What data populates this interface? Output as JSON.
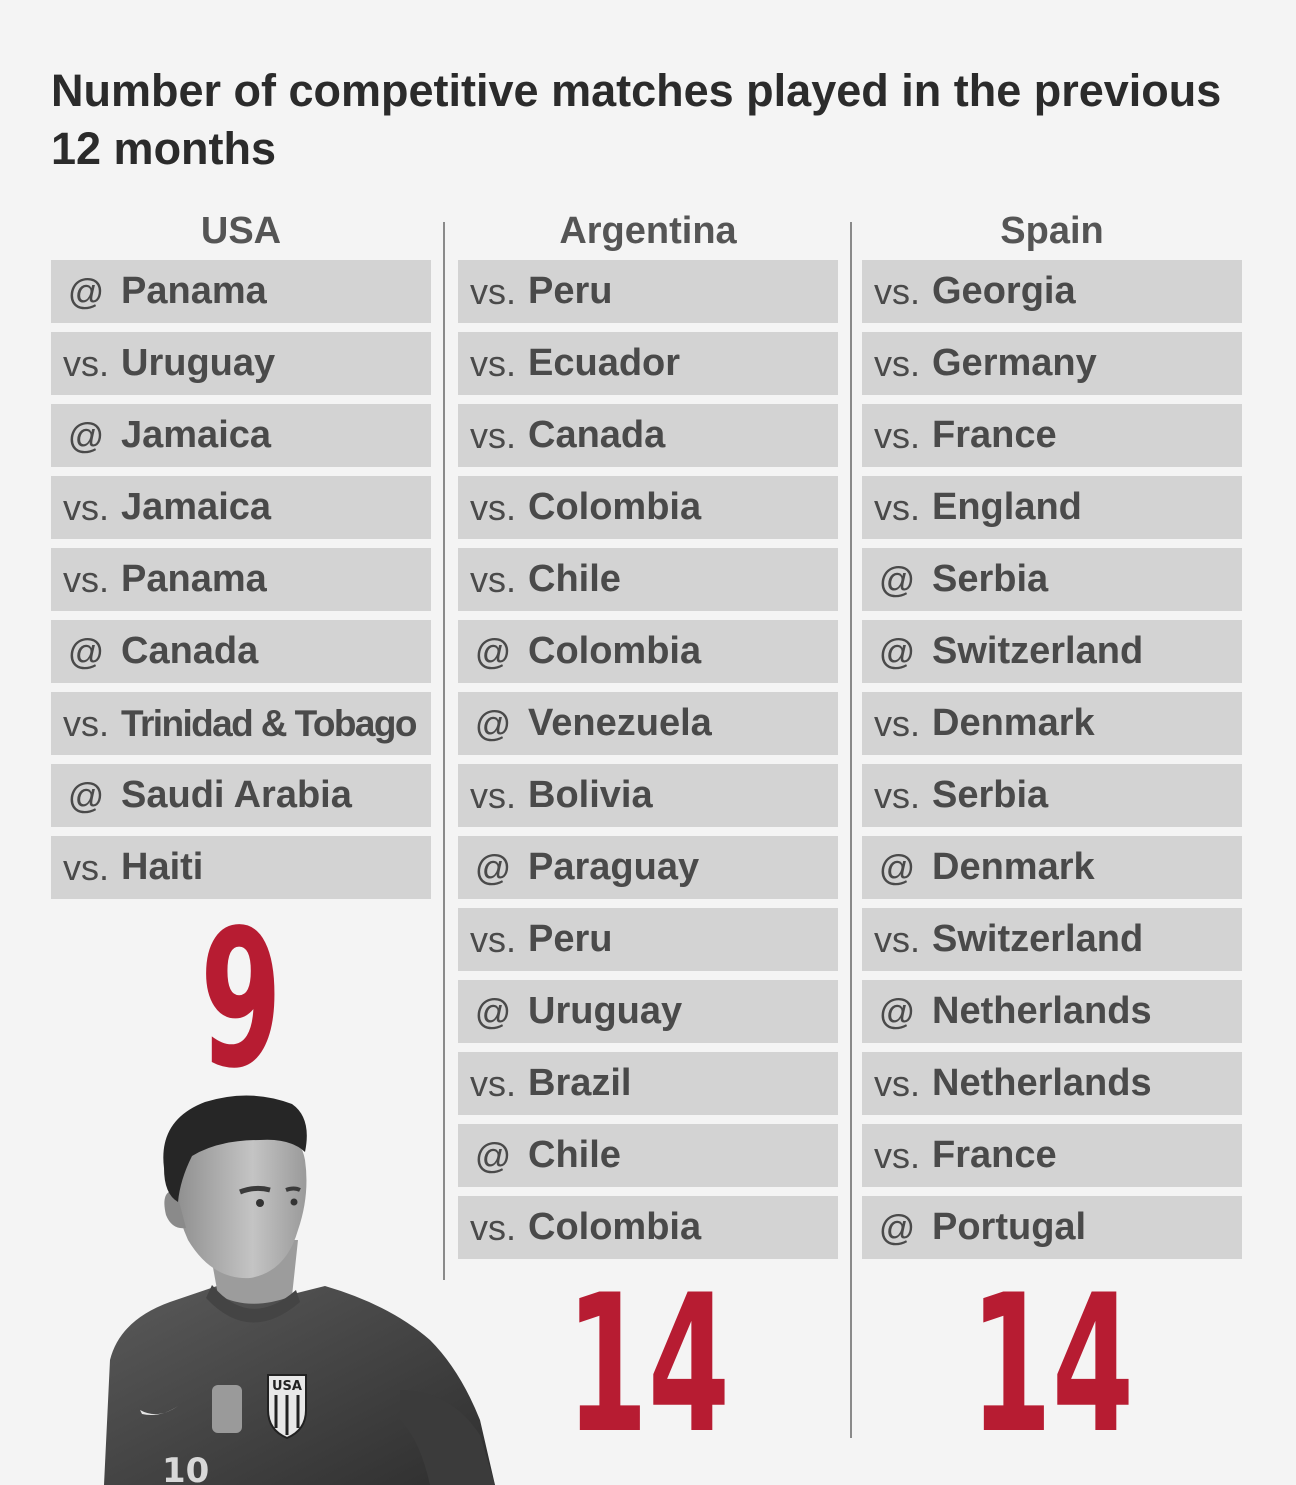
{
  "title": "Number of competitive matches played in the previous 12 months",
  "teams": [
    {
      "name": "USA",
      "total": "9",
      "matches": [
        {
          "prefix": "@",
          "opponent": "Panama"
        },
        {
          "prefix": "vs.",
          "opponent": "Uruguay"
        },
        {
          "prefix": "@",
          "opponent": "Jamaica"
        },
        {
          "prefix": "vs.",
          "opponent": "Jamaica"
        },
        {
          "prefix": "vs.",
          "opponent": "Panama"
        },
        {
          "prefix": "@",
          "opponent": "Canada"
        },
        {
          "prefix": "vs.",
          "opponent": "Trinidad & Tobago"
        },
        {
          "prefix": "@",
          "opponent": "Saudi Arabia"
        },
        {
          "prefix": "vs.",
          "opponent": "Haiti"
        }
      ]
    },
    {
      "name": "Argentina",
      "total": "14",
      "matches": [
        {
          "prefix": "vs.",
          "opponent": "Peru"
        },
        {
          "prefix": "vs.",
          "opponent": "Ecuador"
        },
        {
          "prefix": "vs.",
          "opponent": "Canada"
        },
        {
          "prefix": "vs.",
          "opponent": "Colombia"
        },
        {
          "prefix": "vs.",
          "opponent": "Chile"
        },
        {
          "prefix": "@",
          "opponent": "Colombia"
        },
        {
          "prefix": "@",
          "opponent": "Venezuela"
        },
        {
          "prefix": "vs.",
          "opponent": "Bolivia"
        },
        {
          "prefix": "@",
          "opponent": "Paraguay"
        },
        {
          "prefix": "vs.",
          "opponent": "Peru"
        },
        {
          "prefix": "@",
          "opponent": "Uruguay"
        },
        {
          "prefix": "vs.",
          "opponent": "Brazil"
        },
        {
          "prefix": "@",
          "opponent": "Chile"
        },
        {
          "prefix": "vs.",
          "opponent": "Colombia"
        }
      ]
    },
    {
      "name": "Spain",
      "total": "14",
      "matches": [
        {
          "prefix": "vs.",
          "opponent": "Georgia"
        },
        {
          "prefix": "vs.",
          "opponent": "Germany"
        },
        {
          "prefix": "vs.",
          "opponent": "France"
        },
        {
          "prefix": "vs.",
          "opponent": "England"
        },
        {
          "prefix": "@",
          "opponent": "Serbia"
        },
        {
          "prefix": "@",
          "opponent": "Switzerland"
        },
        {
          "prefix": "vs.",
          "opponent": "Denmark"
        },
        {
          "prefix": "vs.",
          "opponent": "Serbia"
        },
        {
          "prefix": "@",
          "opponent": "Denmark"
        },
        {
          "prefix": "vs.",
          "opponent": "Switzerland"
        },
        {
          "prefix": "@",
          "opponent": "Netherlands"
        },
        {
          "prefix": "vs.",
          "opponent": "Netherlands"
        },
        {
          "prefix": "vs.",
          "opponent": "France"
        },
        {
          "prefix": "@",
          "opponent": "Portugal"
        }
      ]
    }
  ],
  "player_image": {
    "icon": "soccer-player-photo",
    "jersey_badge": "USA",
    "jersey_number": "10"
  },
  "colors": {
    "background": "#f4f4f4",
    "row": "#d3d3d3",
    "accent": "#b71c32"
  }
}
